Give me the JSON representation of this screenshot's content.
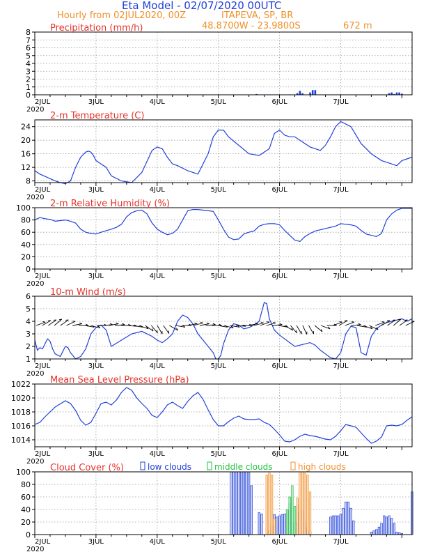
{
  "header": {
    "title": "Eta Model - 02/07/2020 00UTC",
    "hourly": "Hourly from 02JUL2020, 00Z",
    "site": "ITAPEVA, SP, BR",
    "coords": "48.8700W - 23.9800S",
    "elevation": "672   m"
  },
  "colors": {
    "line": "#2040d8",
    "title": "#e8322a",
    "orange": "#f0902a",
    "green": "#22c040",
    "grid": "#999999"
  },
  "x_ticks": [
    "2JUL",
    "3JUL",
    "4JUL",
    "5JUL",
    "6JUL",
    "7JUL"
  ],
  "x_year": "2020",
  "chart_data": [
    {
      "type": "bar",
      "title": "Precipitation (mm/h)",
      "ylim": [
        0,
        8
      ],
      "yticks": [
        0,
        1,
        2,
        3,
        4,
        5,
        6,
        7,
        8
      ],
      "x_unit": "hours since 02JUL2020 00Z",
      "x": [
        87,
        88,
        89,
        90,
        91,
        92,
        93,
        94,
        95,
        96,
        97,
        98,
        99,
        100,
        101,
        102,
        103,
        104,
        105,
        106,
        107,
        108,
        109,
        110,
        111,
        112,
        113,
        114,
        115,
        116,
        117,
        118,
        119,
        120,
        121,
        122,
        123,
        124,
        125,
        126,
        127,
        128,
        129,
        130,
        131,
        132,
        133,
        134,
        135,
        136,
        137,
        138,
        139,
        140,
        141,
        142,
        143,
        144,
        145,
        146,
        147,
        148
      ],
      "values": [
        0.1,
        0,
        0,
        0,
        0,
        0.05,
        0,
        0,
        0,
        0,
        0,
        0,
        0,
        0.05,
        0,
        0,
        0.2,
        0.5,
        0.2,
        0,
        0,
        0.3,
        0.6,
        0.6,
        0,
        0,
        0,
        0,
        0,
        0,
        0,
        0,
        0,
        0,
        0,
        0,
        0,
        0,
        0,
        0,
        0,
        0,
        0,
        0,
        0,
        0,
        0,
        0,
        0,
        0,
        0,
        0,
        0.2,
        0.3,
        0.1,
        0.3,
        0.3,
        0.15,
        0,
        0,
        0,
        0
      ]
    },
    {
      "type": "line",
      "title": "2-m Temperature (C)",
      "ylim": [
        7.5,
        26
      ],
      "yticks": [
        8,
        12,
        16,
        20,
        24
      ],
      "x": [
        0,
        2,
        5,
        8,
        10,
        12,
        14,
        16,
        18,
        20,
        21,
        22,
        23,
        24,
        26,
        28,
        30,
        34,
        38,
        42,
        46,
        48,
        50,
        52,
        54,
        56,
        60,
        64,
        68,
        70,
        72,
        74,
        76,
        80,
        84,
        88,
        92,
        94,
        96,
        98,
        100,
        102,
        104,
        108,
        112,
        114,
        116,
        118,
        120,
        124,
        128,
        132,
        136,
        140,
        142,
        144,
        148
      ],
      "values": [
        11,
        10,
        9,
        8,
        7.5,
        7.2,
        8,
        12,
        15,
        16.5,
        16.8,
        16.5,
        15.5,
        14,
        13,
        12,
        9.5,
        8,
        7.5,
        10.5,
        17,
        18,
        17.5,
        15,
        13,
        12.5,
        11,
        10,
        16,
        21,
        23,
        23,
        21,
        18.5,
        16,
        15.5,
        17.5,
        22,
        23,
        21.5,
        21,
        21,
        20,
        18,
        17,
        18.5,
        21,
        24,
        25.5,
        24,
        19,
        16,
        14,
        13,
        12.5,
        14,
        15
      ]
    },
    {
      "type": "line",
      "title": "2-m Relative Humidity (%)",
      "ylim": [
        0,
        100
      ],
      "yticks": [
        0,
        20,
        40,
        60,
        80,
        100
      ],
      "x": [
        0,
        2,
        4,
        6,
        8,
        10,
        12,
        14,
        16,
        18,
        20,
        22,
        24,
        26,
        30,
        32,
        34,
        36,
        38,
        40,
        42,
        44,
        46,
        48,
        50,
        52,
        54,
        56,
        58,
        60,
        62,
        64,
        66,
        68,
        70,
        72,
        74,
        76,
        78,
        80,
        82,
        84,
        86,
        88,
        90,
        92,
        94,
        96,
        98,
        100,
        102,
        104,
        106,
        108,
        110,
        112,
        114,
        116,
        118,
        120,
        122,
        124,
        126,
        128,
        130,
        132,
        134,
        136,
        138,
        140,
        142,
        144,
        146,
        148
      ],
      "values": [
        80,
        84,
        82,
        81,
        78,
        79,
        80,
        78,
        75,
        65,
        60,
        58,
        57,
        60,
        65,
        68,
        73,
        85,
        92,
        95,
        96,
        90,
        75,
        65,
        60,
        56,
        58,
        65,
        80,
        95,
        97,
        97,
        96,
        95,
        94,
        80,
        65,
        52,
        48,
        49,
        57,
        60,
        62,
        70,
        73,
        74,
        74,
        72,
        63,
        55,
        47,
        45,
        53,
        58,
        62,
        64,
        66,
        68,
        70,
        74,
        73,
        72,
        70,
        63,
        57,
        55,
        53,
        58,
        80,
        90,
        96,
        99,
        99,
        99
      ]
    },
    {
      "type": "line",
      "title": "10-m Wind (m/s)",
      "ylim": [
        1,
        6
      ],
      "yticks": [
        1,
        2,
        3,
        4,
        5,
        6
      ],
      "x": [
        0,
        1,
        2,
        3,
        4,
        5,
        6,
        7,
        8,
        9,
        10,
        11,
        12,
        13,
        14,
        16,
        18,
        20,
        22,
        24,
        26,
        28,
        30,
        34,
        38,
        42,
        46,
        48,
        50,
        52,
        54,
        56,
        58,
        60,
        62,
        64,
        66,
        68,
        70,
        71,
        72,
        73,
        74,
        76,
        78,
        80,
        82,
        84,
        86,
        88,
        90,
        91,
        92,
        94,
        96,
        98,
        100,
        102,
        104,
        106,
        108,
        110,
        112,
        114,
        116,
        118,
        120,
        122,
        124,
        126,
        128,
        130,
        132,
        134,
        136,
        138,
        140,
        142,
        144,
        146,
        148
      ],
      "values": [
        2.5,
        1.7,
        1.9,
        1.8,
        2.2,
        2.6,
        2.4,
        1.8,
        1.4,
        1.3,
        1.2,
        1.6,
        2.0,
        1.9,
        1.5,
        1.0,
        1.2,
        1.8,
        3.0,
        3.5,
        3.7,
        3.3,
        2.0,
        2.5,
        3.0,
        3.2,
        2.8,
        2.5,
        2.3,
        2.6,
        3.0,
        4.0,
        4.5,
        4.3,
        3.8,
        3.0,
        2.5,
        2.0,
        1.5,
        1.0,
        1.0,
        1.3,
        2.2,
        3.3,
        3.8,
        3.7,
        3.4,
        3.5,
        3.7,
        4.0,
        5.5,
        5.4,
        4.2,
        3.3,
        2.9,
        2.6,
        2.3,
        2.0,
        2.1,
        2.2,
        2.3,
        2.1,
        1.7,
        1.4,
        1.1,
        1.0,
        1.5,
        3.0,
        3.6,
        3.5,
        1.5,
        1.3,
        2.8,
        3.4,
        3.7,
        3.9,
        4.0,
        4.1,
        4.2,
        4.0,
        4.2
      ]
    },
    {
      "type": "line",
      "title": "Mean Sea Level Pressure (hPa)",
      "ylim": [
        1013,
        1022
      ],
      "yticks": [
        1014,
        1016,
        1018,
        1020,
        1022
      ],
      "x": [
        0,
        2,
        4,
        8,
        12,
        14,
        16,
        18,
        20,
        22,
        24,
        26,
        28,
        30,
        32,
        34,
        36,
        38,
        40,
        42,
        44,
        46,
        48,
        50,
        52,
        54,
        56,
        58,
        60,
        62,
        64,
        66,
        68,
        70,
        72,
        74,
        76,
        78,
        80,
        82,
        84,
        86,
        88,
        90,
        92,
        94,
        96,
        98,
        100,
        102,
        104,
        106,
        108,
        110,
        112,
        114,
        116,
        118,
        120,
        122,
        124,
        126,
        128,
        130,
        132,
        134,
        136,
        138,
        140,
        142,
        144,
        146,
        148
      ],
      "values": [
        1016.2,
        1016.5,
        1017.3,
        1018.7,
        1019.6,
        1019.2,
        1018.2,
        1016.8,
        1016.1,
        1016.5,
        1017.8,
        1019.2,
        1019.4,
        1019,
        1019.7,
        1020.8,
        1021.5,
        1021.1,
        1020,
        1019.2,
        1018.5,
        1017.5,
        1017.2,
        1018,
        1019,
        1019.4,
        1018.9,
        1018.5,
        1019.5,
        1020.3,
        1020.8,
        1019.8,
        1018.3,
        1016.9,
        1016,
        1016,
        1016.6,
        1017.1,
        1017.4,
        1017,
        1016.9,
        1016.9,
        1017,
        1016.5,
        1016.2,
        1015.5,
        1014.7,
        1013.8,
        1013.7,
        1014,
        1014.5,
        1014.8,
        1014.6,
        1014.5,
        1014.3,
        1014.1,
        1014,
        1014.5,
        1015.3,
        1016.2,
        1016,
        1015.8,
        1015,
        1014.2,
        1013.5,
        1013.8,
        1014.4,
        1016,
        1016.1,
        1016,
        1016.2,
        1016.8,
        1017.3
      ]
    },
    {
      "type": "bar",
      "title": "Cloud Cover (%)",
      "legend": [
        "low clouds",
        "middle clouds",
        "high clouds"
      ],
      "ylim": [
        0,
        100
      ],
      "yticks": [
        0,
        20,
        40,
        60,
        80,
        100
      ],
      "series": [
        {
          "name": "low clouds",
          "x": [
            77,
            78,
            79,
            80,
            81,
            82,
            83,
            84,
            85,
            88,
            89,
            92,
            93,
            94,
            95,
            96,
            97,
            98,
            99,
            100,
            101,
            102,
            103,
            104,
            105,
            106,
            107,
            108,
            116,
            117,
            118,
            119,
            120,
            121,
            122,
            123,
            124,
            125,
            132,
            133,
            134,
            135,
            136,
            137,
            138,
            139,
            140,
            141,
            142,
            143,
            144,
            148
          ],
          "values": [
            100,
            100,
            100,
            100,
            100,
            100,
            100,
            100,
            78,
            35,
            33,
            6,
            15,
            32,
            28,
            30,
            32,
            33,
            38,
            50,
            58,
            20,
            35,
            48,
            40,
            20,
            10,
            5,
            28,
            30,
            30,
            30,
            33,
            42,
            52,
            52,
            42,
            22,
            4,
            6,
            8,
            12,
            18,
            30,
            28,
            30,
            26,
            18,
            4,
            3,
            2,
            68
          ]
        },
        {
          "name": "middle clouds",
          "x": [
            99,
            100,
            101,
            102
          ],
          "values": [
            40,
            60,
            78,
            45
          ]
        },
        {
          "name": "high clouds",
          "x": [
            91,
            92,
            93,
            94,
            103,
            104,
            105,
            106,
            107,
            108
          ],
          "values": [
            95,
            98,
            95,
            25,
            58,
            98,
            100,
            98,
            95,
            68
          ]
        }
      ]
    }
  ]
}
